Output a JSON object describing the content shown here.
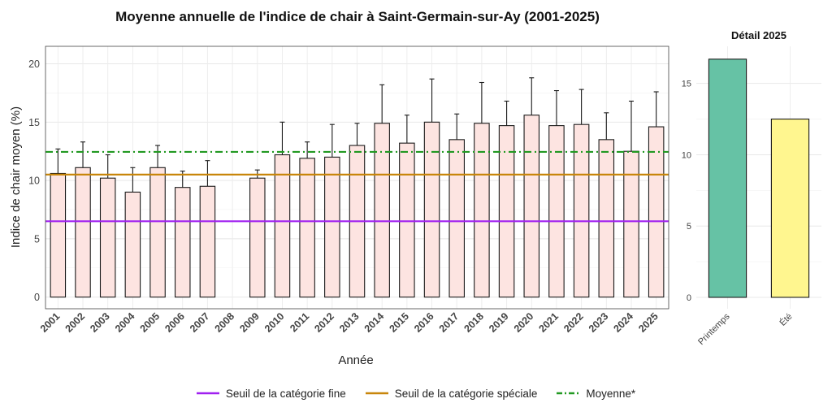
{
  "main_chart": {
    "title": "Moyenne annuelle de l'indice de chair à Saint-Germain-sur-Ay (2001-2025)",
    "xlabel": "Année",
    "ylabel": "Indice de chair moyen (%)"
  },
  "side_chart": {
    "title": "Détail 2025"
  },
  "legend": [
    {
      "label": "Seuil de la catégorie fine",
      "color": "#a020f0",
      "style": "solid"
    },
    {
      "label": "Seuil de la catégorie spéciale",
      "color": "#c8860b",
      "style": "solid"
    },
    {
      "label": "Moyenne*",
      "color": "#229922",
      "style": "dashdot"
    }
  ],
  "chart_data": [
    {
      "type": "bar",
      "title": "Moyenne annuelle de l'indice de chair à Saint-Germain-sur-Ay (2001-2025)",
      "xlabel": "Année",
      "ylabel": "Indice de chair moyen (%)",
      "categories": [
        "2001",
        "2002",
        "2003",
        "2004",
        "2005",
        "2006",
        "2007",
        "2008",
        "2009",
        "2010",
        "2011",
        "2012",
        "2013",
        "2014",
        "2015",
        "2016",
        "2017",
        "2018",
        "2019",
        "2020",
        "2021",
        "2022",
        "2023",
        "2024",
        "2025"
      ],
      "values": [
        10.6,
        11.1,
        10.2,
        9.0,
        11.1,
        9.4,
        9.5,
        null,
        10.2,
        12.2,
        11.9,
        12.0,
        13.0,
        14.9,
        13.2,
        15.0,
        13.5,
        14.9,
        14.7,
        15.6,
        14.7,
        14.8,
        13.5,
        12.5,
        14.6
      ],
      "error_upper": [
        12.7,
        13.3,
        12.2,
        11.1,
        13.0,
        10.8,
        11.7,
        null,
        10.9,
        15.0,
        13.3,
        14.8,
        14.9,
        18.2,
        15.6,
        18.7,
        15.7,
        18.4,
        16.8,
        18.8,
        17.7,
        17.8,
        15.8,
        16.8,
        17.6
      ],
      "ylim": [
        -1,
        21.5
      ],
      "yticks": [
        0,
        5,
        10,
        15,
        20
      ],
      "reference_lines": [
        {
          "name": "Seuil de la catégorie fine",
          "y": 6.5,
          "color": "#a020f0",
          "style": "solid"
        },
        {
          "name": "Seuil de la catégorie spéciale",
          "y": 10.5,
          "color": "#c8860b",
          "style": "solid"
        },
        {
          "name": "Moyenne*",
          "y": 12.45,
          "color": "#229922",
          "style": "dashdot"
        }
      ],
      "bar_color": "#fde4e1",
      "grid": true,
      "legend_position": "bottom"
    },
    {
      "type": "bar",
      "title": "Détail 2025",
      "categories": [
        "Printemps",
        "Été"
      ],
      "values": [
        16.7,
        12.5
      ],
      "colors": [
        "#66c2a5",
        "#fff68f"
      ],
      "ylim": [
        -0.8,
        17.6
      ],
      "yticks": [
        0,
        5,
        10,
        15
      ],
      "grid": true
    }
  ]
}
